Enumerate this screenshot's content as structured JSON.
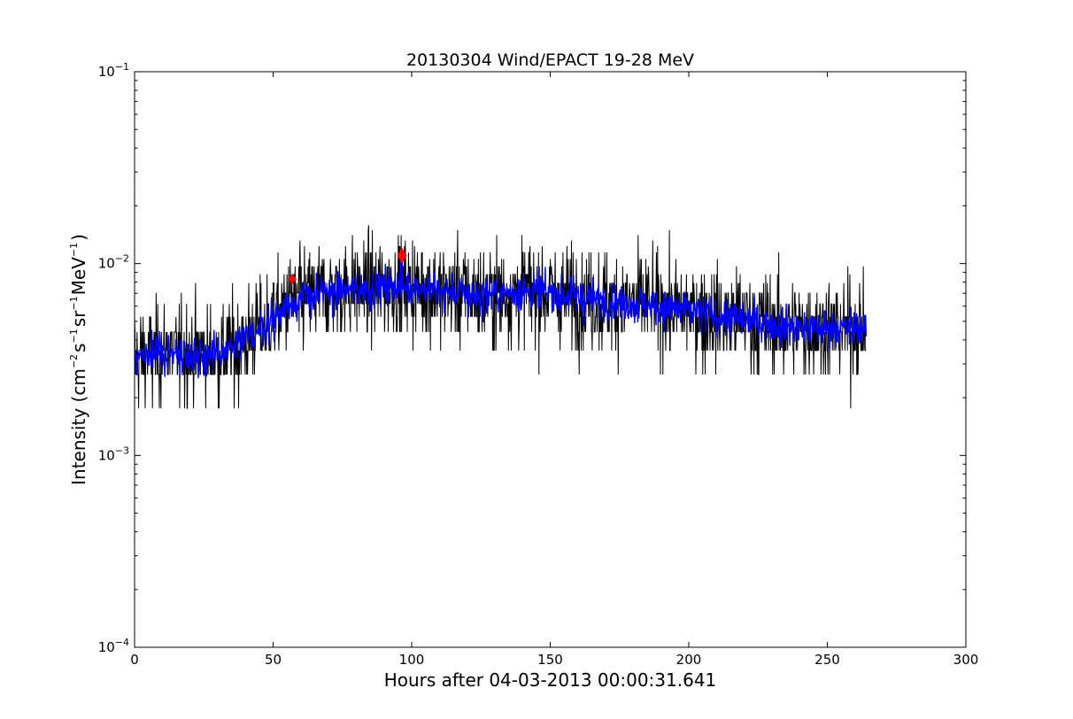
{
  "chart_data": {
    "type": "line",
    "title": "20130304 Wind/EPACT 19-28 MeV",
    "xlabel": "Hours after 04-03-2013 00:00:31.641",
    "ylabel": {
      "base": "Intensity (cm",
      "exp1": "−2",
      "mid1": "s",
      "exp2": "−1",
      "mid2": "sr",
      "exp3": "−1",
      "mid3": "MeV",
      "exp4": "−1",
      "end": ")"
    },
    "xlim": [
      0,
      300
    ],
    "ylim": [
      0.0001,
      0.1
    ],
    "yscale": "log",
    "grid": false,
    "x_ticks": [
      0,
      50,
      100,
      150,
      200,
      250,
      300
    ],
    "x_tick_labels": [
      "0",
      "50",
      "100",
      "150",
      "200",
      "250",
      "300"
    ],
    "y_ticks": [
      {
        "value": 0.0001,
        "base": "10",
        "exp": "−4"
      },
      {
        "value": 0.001,
        "base": "10",
        "exp": "−3"
      },
      {
        "value": 0.01,
        "base": "10",
        "exp": "−2"
      },
      {
        "value": 0.1,
        "base": "10",
        "exp": "−1"
      }
    ],
    "series": [
      {
        "role": "raw-intensity",
        "color": "#000000",
        "x_range": [
          0,
          264
        ],
        "floor": 0.00088,
        "profile": [
          [
            0,
            0.0033
          ],
          [
            10,
            0.0034
          ],
          [
            20,
            0.0034
          ],
          [
            30,
            0.0033
          ],
          [
            40,
            0.004
          ],
          [
            50,
            0.0052
          ],
          [
            57,
            0.0064
          ],
          [
            65,
            0.0068
          ],
          [
            75,
            0.0073
          ],
          [
            85,
            0.0074
          ],
          [
            96,
            0.0077
          ],
          [
            110,
            0.0072
          ],
          [
            125,
            0.0068
          ],
          [
            140,
            0.0072
          ],
          [
            150,
            0.007
          ],
          [
            165,
            0.0065
          ],
          [
            180,
            0.0062
          ],
          [
            195,
            0.0058
          ],
          [
            210,
            0.0053
          ],
          [
            225,
            0.005
          ],
          [
            240,
            0.0046
          ],
          [
            255,
            0.0046
          ],
          [
            264,
            0.0045
          ]
        ]
      },
      {
        "role": "smoothed-intensity",
        "color": "#0000ff",
        "x_range": [
          0,
          264
        ],
        "profile": [
          [
            0,
            0.0033
          ],
          [
            10,
            0.0034
          ],
          [
            20,
            0.0034
          ],
          [
            30,
            0.0033
          ],
          [
            40,
            0.004
          ],
          [
            50,
            0.0052
          ],
          [
            57,
            0.0064
          ],
          [
            65,
            0.0068
          ],
          [
            75,
            0.0073
          ],
          [
            85,
            0.0074
          ],
          [
            96,
            0.0077
          ],
          [
            110,
            0.0072
          ],
          [
            125,
            0.0068
          ],
          [
            140,
            0.0072
          ],
          [
            150,
            0.007
          ],
          [
            165,
            0.0065
          ],
          [
            180,
            0.0062
          ],
          [
            195,
            0.0058
          ],
          [
            210,
            0.0053
          ],
          [
            225,
            0.005
          ],
          [
            240,
            0.0046
          ],
          [
            255,
            0.0046
          ],
          [
            264,
            0.0045
          ]
        ]
      }
    ],
    "markers": [
      {
        "x": 57,
        "y": 0.0083,
        "color": "#ff0000",
        "size": "small"
      },
      {
        "x": 96.5,
        "y": 0.011,
        "color": "#ff0000",
        "size": "large"
      }
    ]
  }
}
